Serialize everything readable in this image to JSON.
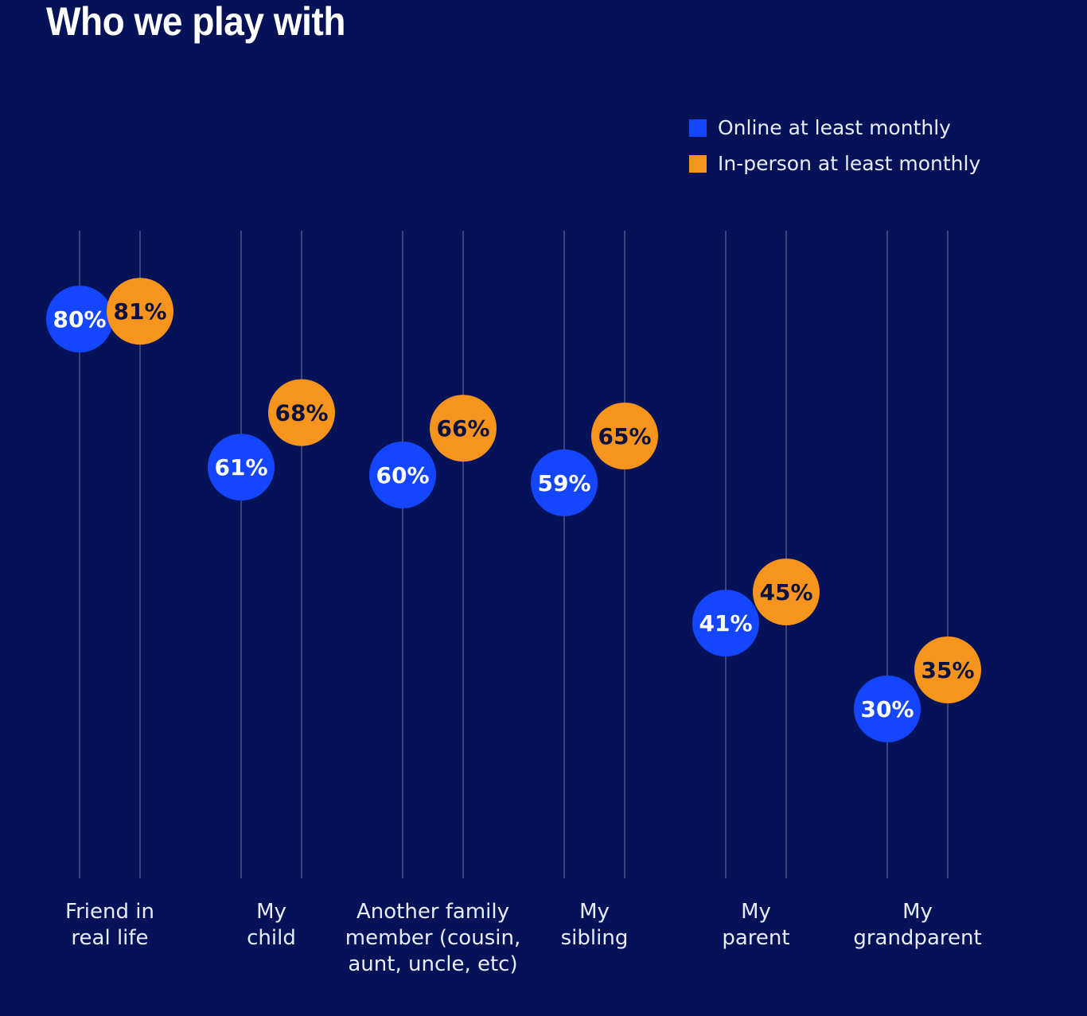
{
  "chart_data": {
    "type": "scatter",
    "title": "Who we play with",
    "xlabel": "",
    "ylabel": "",
    "ylim": [
      0,
      100
    ],
    "grid": "vertical lines per series per category",
    "legend_position": "top-right",
    "categories": [
      [
        "Friend in",
        "real life"
      ],
      [
        "My",
        "child"
      ],
      [
        "Another family",
        "member (cousin,",
        "aunt, uncle, etc)"
      ],
      [
        "My",
        "sibling"
      ],
      [
        "My",
        "parent"
      ],
      [
        "My",
        "grandparent"
      ]
    ],
    "series": [
      {
        "name": "Online at least monthly",
        "color": "#1446ff",
        "text_color": "#ffffff",
        "values": [
          80,
          61,
          60,
          59,
          41,
          30
        ]
      },
      {
        "name": "In-person at least monthly",
        "color": "#f7941d",
        "text_color": "#0b1240",
        "values": [
          81,
          68,
          66,
          65,
          45,
          35
        ]
      }
    ],
    "value_suffix": "%"
  },
  "legend": [
    {
      "label": "Online at least monthly",
      "color": "#1446ff"
    },
    {
      "label": "In-person at least monthly",
      "color": "#f7941d"
    }
  ]
}
